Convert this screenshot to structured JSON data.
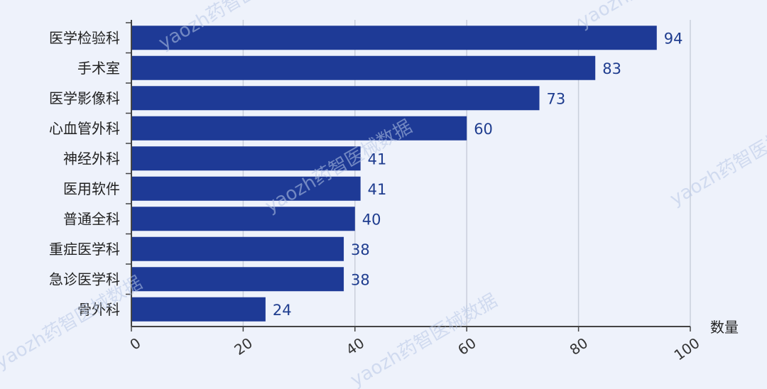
{
  "chart_data": {
    "type": "bar",
    "orientation": "horizontal",
    "categories": [
      "医学检验科",
      "手术室",
      "医学影像科",
      "心血管外科",
      "神经外科",
      "医用软件",
      "普通全科",
      "重症医学科",
      "急诊医学科",
      "骨外科"
    ],
    "values": [
      94,
      83,
      73,
      60,
      41,
      41,
      40,
      38,
      38,
      24
    ],
    "xlabel": "数量",
    "xlim": [
      0,
      100
    ],
    "xticks": [
      0,
      20,
      40,
      60,
      80,
      100
    ],
    "grid": "vertical",
    "bar_color": "#1e3a96",
    "background_color": "#eef2fb"
  },
  "watermark": {
    "text": "yaozh药智医械数据"
  }
}
